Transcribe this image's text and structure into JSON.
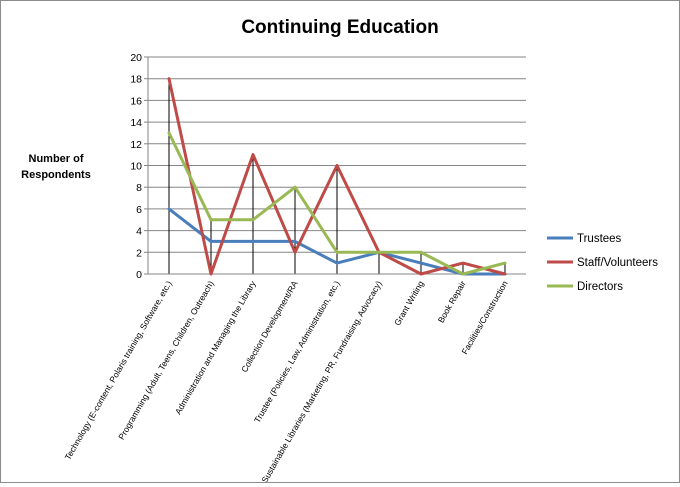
{
  "chart_data": {
    "type": "line",
    "title": "Continuing Education",
    "ylabel": "Number of Respondents",
    "xlabel": "",
    "ylim": [
      0,
      20
    ],
    "yticks": [
      0,
      2,
      4,
      6,
      8,
      10,
      12,
      14,
      16,
      18,
      20
    ],
    "grid": true,
    "legend_position": "right",
    "categories": [
      "Technology (E-content, Polaris training, Software, etc.)",
      "Programming (Adult, Teens, Children, Outreach)",
      "Administration and Managing the Library",
      "Collection Development/RA",
      "Trustee (Policies, Law, Administration, etc.)",
      "Sustainable Libraries (Marketing, PR, Fundraising, Advocacy)",
      "Grant Writing",
      "Book Repair",
      "Facilities/Construction"
    ],
    "series": [
      {
        "name": "Trustees",
        "color": "#4a7ebb",
        "values": [
          6,
          3,
          3,
          3,
          1,
          2,
          1,
          0,
          0
        ]
      },
      {
        "name": "Staff/Volunteers",
        "color": "#be4b48",
        "values": [
          18,
          0,
          11,
          2,
          10,
          2,
          0,
          1,
          0
        ]
      },
      {
        "name": "Directors",
        "color": "#98b954",
        "values": [
          13,
          5,
          5,
          8,
          2,
          2,
          2,
          0,
          1
        ]
      }
    ]
  }
}
